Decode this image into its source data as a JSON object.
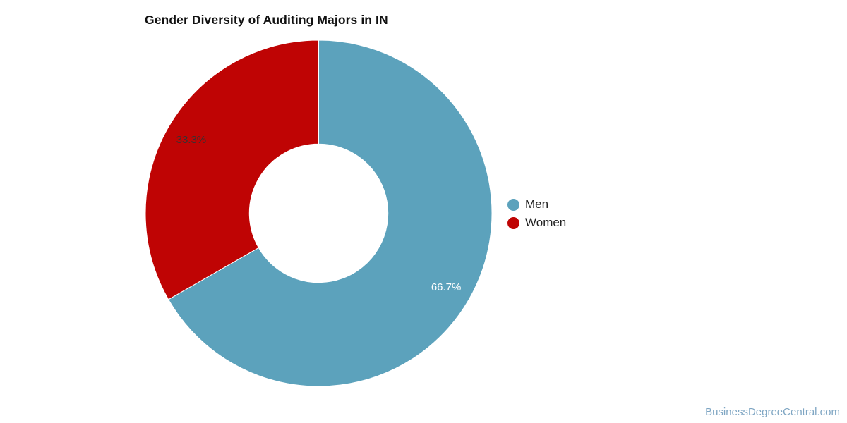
{
  "title": "Gender Diversity of Auditing Majors in IN",
  "watermark": "BusinessDegreeCentral.com",
  "colors": {
    "background": "#ffffff",
    "title_text": "#111111",
    "legend_text": "#222222",
    "watermark_text": "#7FA6C3",
    "slice_divider": "#ffffff"
  },
  "legend": {
    "items": [
      {
        "label": "Men",
        "color": "#5CA2BC"
      },
      {
        "label": "Women",
        "color": "#BF0404"
      }
    ]
  },
  "chart_data": {
    "type": "pie",
    "subtype": "donut",
    "title": "Gender Diversity of Auditing Majors in IN",
    "categories": [
      "Men",
      "Women"
    ],
    "values": [
      66.7,
      33.3
    ],
    "series": [
      {
        "name": "Men",
        "value": 66.7,
        "percent_label": "66.7%",
        "color": "#5CA2BC",
        "label_color": "#ffffff"
      },
      {
        "name": "Women",
        "value": 33.3,
        "percent_label": "33.3%",
        "color": "#BF0404",
        "label_color": "#333333"
      }
    ],
    "start_angle_deg": 0,
    "direction": "clockwise",
    "inner_radius_ratio": 0.4,
    "legend_position": "right",
    "labels": "percent-inside-slices"
  }
}
